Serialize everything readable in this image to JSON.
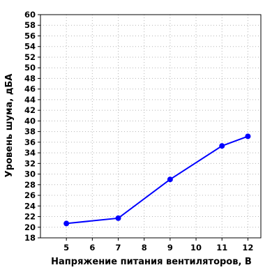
{
  "chart_data": {
    "type": "line",
    "title": "",
    "xlabel": "Напряжение питания вентиляторов, В",
    "ylabel": "Уровень шума, дБА",
    "xlim": [
      4,
      12.5
    ],
    "ylim": [
      18,
      60
    ],
    "x_ticks": [
      5,
      6,
      7,
      8,
      9,
      10,
      11,
      12
    ],
    "y_ticks": [
      18,
      20,
      22,
      24,
      26,
      28,
      30,
      32,
      34,
      36,
      38,
      40,
      42,
      44,
      46,
      48,
      50,
      52,
      54,
      56,
      58,
      60
    ],
    "grid": true,
    "legend": "none",
    "series": [
      {
        "color": "#0000ff",
        "x": [
          5,
          7,
          9,
          11,
          12
        ],
        "y": [
          20.7,
          21.7,
          29.0,
          35.3,
          37.1
        ]
      }
    ]
  }
}
